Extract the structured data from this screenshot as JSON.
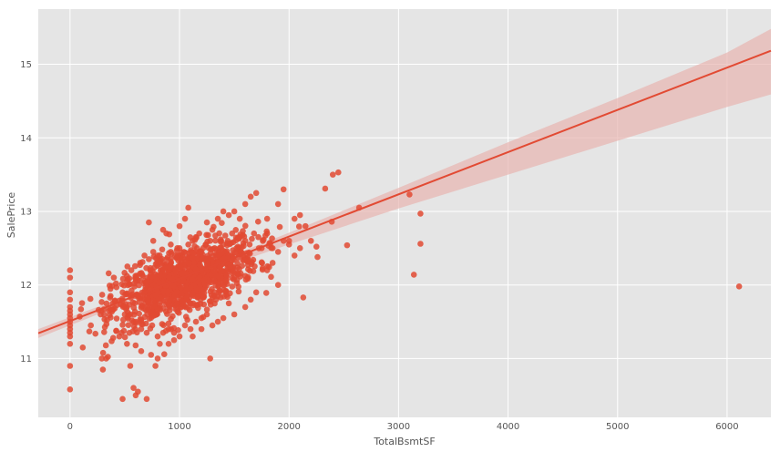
{
  "chart_data": {
    "type": "scatter",
    "xlabel": "TotalBsmtSF",
    "ylabel": "SalePrice",
    "xlim": [
      -290,
      6400
    ],
    "ylim": [
      10.2,
      15.75
    ],
    "x_ticks": [
      0,
      1000,
      2000,
      3000,
      4000,
      5000,
      6000
    ],
    "y_ticks": [
      11,
      12,
      13,
      14,
      15
    ],
    "x_tick_labels": [
      "0",
      "1000",
      "2000",
      "3000",
      "4000",
      "5000",
      "6000"
    ],
    "y_tick_labels": [
      "11",
      "12",
      "13",
      "14",
      "15"
    ],
    "grid": true,
    "point_color": "#E24A33",
    "line_color": "#E24A33",
    "band_color": "#E8B5B0",
    "background_color": "#E5E5E5",
    "regression": {
      "intercept": 11.51,
      "slope": 0.000574
    },
    "confidence_band": {
      "x": [
        -290,
        1000,
        2000,
        3000,
        4000,
        5000,
        6000,
        6400
      ],
      "lower": [
        11.28,
        12.04,
        12.55,
        13.04,
        13.5,
        13.96,
        14.42,
        14.59
      ],
      "upper": [
        11.4,
        12.12,
        12.71,
        13.32,
        13.94,
        14.54,
        15.16,
        15.48
      ]
    },
    "points": [
      [
        0,
        12.2
      ],
      [
        0,
        12.1
      ],
      [
        0,
        11.9
      ],
      [
        0,
        11.8
      ],
      [
        0,
        11.7
      ],
      [
        0,
        11.65
      ],
      [
        0,
        11.6
      ],
      [
        0,
        11.55
      ],
      [
        0,
        11.5
      ],
      [
        0,
        11.45
      ],
      [
        0,
        11.4
      ],
      [
        0,
        11.35
      ],
      [
        0,
        11.3
      ],
      [
        0,
        11.2
      ],
      [
        0,
        10.9
      ],
      [
        0,
        10.58
      ],
      [
        6110,
        11.98
      ],
      [
        3140,
        12.14
      ],
      [
        3200,
        12.56
      ],
      [
        3200,
        12.97
      ],
      [
        3100,
        13.23
      ],
      [
        2450,
        13.53
      ],
      [
        2400,
        13.5
      ],
      [
        2330,
        13.31
      ],
      [
        2640,
        13.05
      ],
      [
        2530,
        12.54
      ],
      [
        2390,
        12.86
      ],
      [
        2250,
        12.52
      ],
      [
        2260,
        12.38
      ],
      [
        2130,
        11.83
      ],
      [
        100,
        11.67
      ],
      [
        190,
        11.45
      ],
      [
        280,
        11.6
      ],
      [
        290,
        11.0
      ],
      [
        300,
        10.85
      ],
      [
        330,
        11.0
      ],
      [
        370,
        11.85
      ],
      [
        390,
        11.75
      ],
      [
        400,
        12.1
      ],
      [
        420,
        12.02
      ],
      [
        450,
        11.3
      ],
      [
        470,
        11.35
      ],
      [
        480,
        10.45
      ],
      [
        500,
        11.6
      ],
      [
        520,
        11.2
      ],
      [
        550,
        10.9
      ],
      [
        580,
        10.6
      ],
      [
        600,
        10.5
      ],
      [
        620,
        10.55
      ],
      [
        650,
        11.1
      ],
      [
        680,
        11.9
      ],
      [
        700,
        10.45
      ],
      [
        720,
        12.85
      ],
      [
        740,
        11.05
      ],
      [
        760,
        12.6
      ],
      [
        780,
        10.9
      ],
      [
        800,
        11.0
      ],
      [
        820,
        11.2
      ],
      [
        850,
        12.75
      ],
      [
        880,
        12.7
      ],
      [
        900,
        11.2
      ],
      [
        920,
        12.55
      ],
      [
        950,
        11.35
      ],
      [
        980,
        12.5
      ],
      [
        1000,
        12.8
      ],
      [
        1050,
        12.9
      ],
      [
        1080,
        13.05
      ],
      [
        1120,
        11.3
      ],
      [
        1150,
        12.65
      ],
      [
        1180,
        12.7
      ],
      [
        1200,
        11.4
      ],
      [
        1250,
        12.85
      ],
      [
        1280,
        11.0
      ],
      [
        1300,
        12.75
      ],
      [
        1350,
        12.9
      ],
      [
        1400,
        13.0
      ],
      [
        1450,
        12.95
      ],
      [
        1500,
        13.0
      ],
      [
        1550,
        12.9
      ],
      [
        1600,
        13.1
      ],
      [
        1650,
        13.2
      ],
      [
        1700,
        13.25
      ],
      [
        1750,
        12.5
      ],
      [
        1800,
        12.9
      ],
      [
        1850,
        12.3
      ],
      [
        1900,
        13.1
      ],
      [
        1950,
        13.3
      ],
      [
        2000,
        12.6
      ],
      [
        2050,
        12.9
      ],
      [
        2100,
        12.95
      ],
      [
        2150,
        12.8
      ],
      [
        2200,
        12.6
      ],
      [
        1900,
        12.0
      ],
      [
        1800,
        12.2
      ],
      [
        1700,
        11.9
      ],
      [
        1650,
        11.8
      ],
      [
        1600,
        11.7
      ],
      [
        1500,
        11.6
      ],
      [
        1450,
        11.75
      ],
      [
        1400,
        11.55
      ],
      [
        1350,
        11.5
      ],
      [
        1300,
        11.45
      ],
      [
        1250,
        11.6
      ],
      [
        1200,
        11.55
      ],
      [
        1150,
        11.5
      ],
      [
        1100,
        11.4
      ],
      [
        1050,
        11.45
      ],
      [
        1000,
        11.3
      ],
      [
        950,
        11.25
      ],
      [
        900,
        11.4
      ],
      [
        850,
        11.35
      ],
      [
        800,
        11.3
      ],
      [
        750,
        11.45
      ],
      [
        700,
        11.35
      ],
      [
        650,
        11.4
      ],
      [
        600,
        11.5
      ],
      [
        550,
        11.6
      ],
      [
        500,
        11.7
      ],
      [
        480,
        11.9
      ],
      [
        520,
        12.05
      ],
      [
        560,
        12.2
      ],
      [
        600,
        12.1
      ],
      [
        640,
        12.3
      ],
      [
        680,
        12.4
      ],
      [
        720,
        12.35
      ],
      [
        760,
        12.45
      ],
      [
        800,
        12.4
      ],
      [
        840,
        12.3
      ],
      [
        880,
        12.35
      ],
      [
        920,
        12.45
      ],
      [
        960,
        12.4
      ],
      [
        1000,
        12.5
      ],
      [
        1040,
        12.45
      ],
      [
        1080,
        12.55
      ],
      [
        1120,
        12.6
      ],
      [
        1160,
        12.5
      ],
      [
        1200,
        12.45
      ],
      [
        1240,
        12.55
      ],
      [
        1280,
        12.6
      ],
      [
        1320,
        12.5
      ],
      [
        1360,
        12.45
      ],
      [
        1400,
        12.55
      ],
      [
        1440,
        12.6
      ],
      [
        1480,
        12.7
      ],
      [
        1520,
        12.5
      ],
      [
        1560,
        12.45
      ],
      [
        1600,
        12.6
      ],
      [
        1640,
        12.55
      ],
      [
        1680,
        12.7
      ],
      [
        1720,
        12.65
      ],
      [
        1760,
        12.6
      ],
      [
        1800,
        12.7
      ],
      [
        1850,
        12.5
      ],
      [
        1900,
        12.45
      ],
      [
        1950,
        12.6
      ],
      [
        2000,
        12.55
      ],
      [
        2050,
        12.4
      ],
      [
        2100,
        12.5
      ]
    ]
  }
}
